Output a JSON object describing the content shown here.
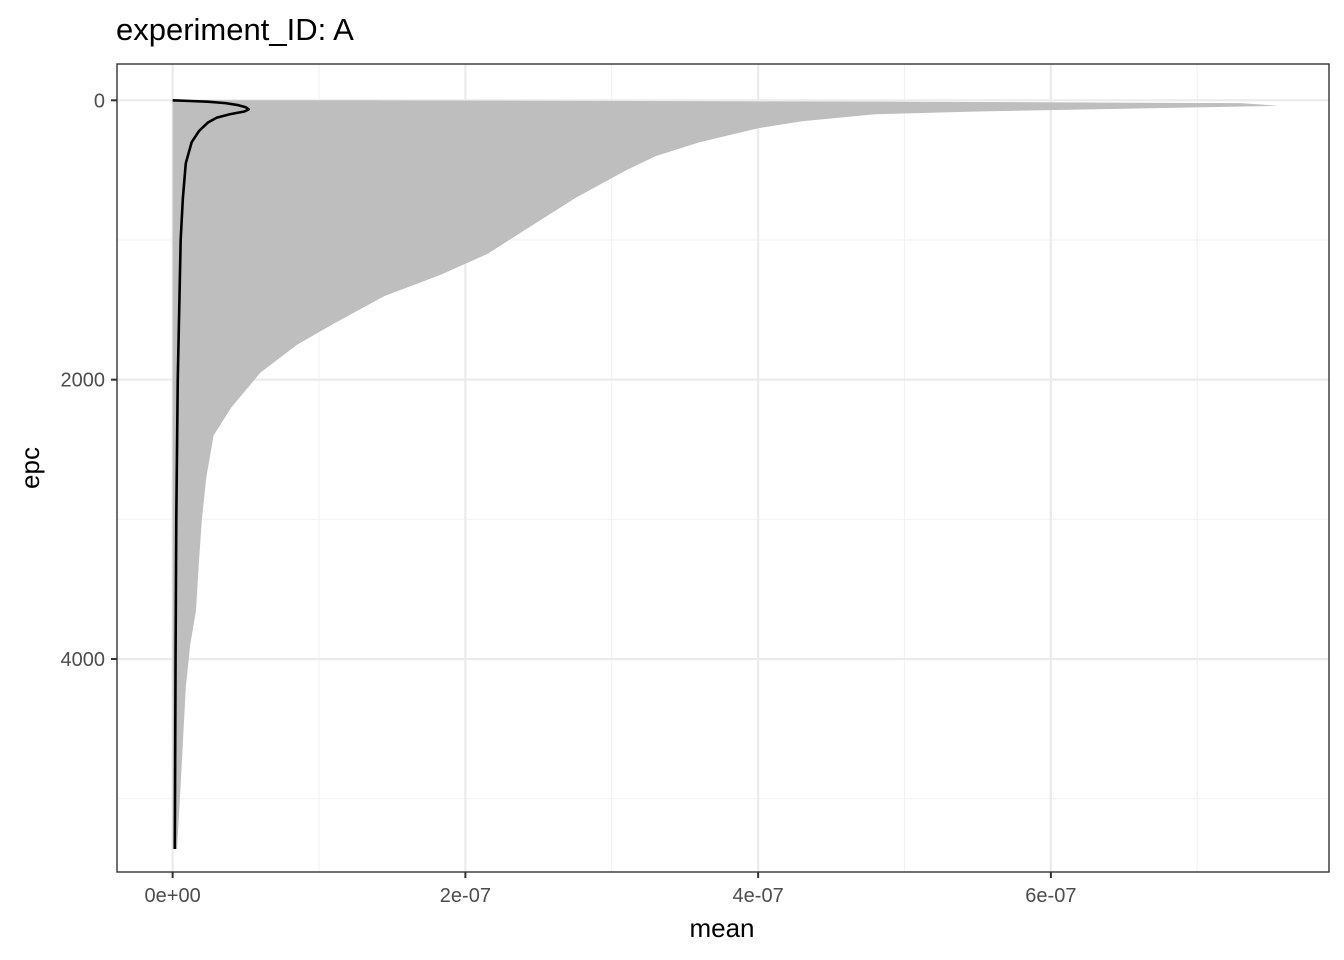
{
  "chart_data": {
    "type": "area",
    "title": "experiment_ID: A",
    "xlabel": "mean",
    "ylabel": "epc",
    "xlim": [
      -3.8e-08,
      7.9e-07
    ],
    "ylim": [
      5525,
      -260
    ],
    "y_reversed": true,
    "x_ticks": [
      {
        "value": 0,
        "label": "0e+00"
      },
      {
        "value": 2e-07,
        "label": "2e-07"
      },
      {
        "value": 4e-07,
        "label": "4e-07"
      },
      {
        "value": 6e-07,
        "label": "6e-07"
      }
    ],
    "x_minor_ticks": [
      1e-07,
      3e-07,
      5e-07,
      7e-07
    ],
    "y_ticks": [
      {
        "value": 0,
        "label": "0"
      },
      {
        "value": 2000,
        "label": "2000"
      },
      {
        "value": 4000,
        "label": "4000"
      }
    ],
    "y_minor_ticks": [
      1000,
      3000,
      5000
    ],
    "grid": true,
    "ribbon": {
      "color": "#bebebe",
      "upper": [
        {
          "epc": 0,
          "x": 1.4e-07
        },
        {
          "epc": 10,
          "x": 5e-07
        },
        {
          "epc": 20,
          "x": 7.3e-07
        },
        {
          "epc": 40,
          "x": 7.56e-07
        },
        {
          "epc": 60,
          "x": 6.5e-07
        },
        {
          "epc": 80,
          "x": 5.5e-07
        },
        {
          "epc": 100,
          "x": 4.8e-07
        },
        {
          "epc": 150,
          "x": 4.3e-07
        },
        {
          "epc": 200,
          "x": 4e-07
        },
        {
          "epc": 300,
          "x": 3.6e-07
        },
        {
          "epc": 400,
          "x": 3.3e-07
        },
        {
          "epc": 500,
          "x": 3.1e-07
        },
        {
          "epc": 700,
          "x": 2.75e-07
        },
        {
          "epc": 900,
          "x": 2.45e-07
        },
        {
          "epc": 1100,
          "x": 2.15e-07
        },
        {
          "epc": 1250,
          "x": 1.83e-07
        },
        {
          "epc": 1400,
          "x": 1.45e-07
        },
        {
          "epc": 1600,
          "x": 1.1e-07
        },
        {
          "epc": 1750,
          "x": 8.5e-08
        },
        {
          "epc": 1950,
          "x": 6e-08
        },
        {
          "epc": 2200,
          "x": 4e-08
        },
        {
          "epc": 2400,
          "x": 2.8e-08
        },
        {
          "epc": 2700,
          "x": 2.3e-08
        },
        {
          "epc": 3000,
          "x": 2e-08
        },
        {
          "epc": 3300,
          "x": 1.8e-08
        },
        {
          "epc": 3650,
          "x": 1.6e-08
        },
        {
          "epc": 3900,
          "x": 1.2e-08
        },
        {
          "epc": 4200,
          "x": 9e-09
        },
        {
          "epc": 4600,
          "x": 7e-09
        },
        {
          "epc": 5000,
          "x": 5e-09
        },
        {
          "epc": 5360,
          "x": 3e-09
        }
      ],
      "lower": [
        {
          "epc": 0,
          "x": 0
        },
        {
          "epc": 5360,
          "x": 0
        }
      ]
    },
    "series": [
      {
        "color": "#000000",
        "points": [
          {
            "epc": 0,
            "x": 0
          },
          {
            "epc": 5,
            "x": 1.2e-08
          },
          {
            "epc": 10,
            "x": 2.4e-08
          },
          {
            "epc": 20,
            "x": 3.6e-08
          },
          {
            "epc": 35,
            "x": 4.5e-08
          },
          {
            "epc": 50,
            "x": 5e-08
          },
          {
            "epc": 65,
            "x": 5.2e-08
          },
          {
            "epc": 80,
            "x": 4.9e-08
          },
          {
            "epc": 100,
            "x": 3.9e-08
          },
          {
            "epc": 125,
            "x": 3e-08
          },
          {
            "epc": 160,
            "x": 2.4e-08
          },
          {
            "epc": 220,
            "x": 1.8e-08
          },
          {
            "epc": 300,
            "x": 1.3e-08
          },
          {
            "epc": 450,
            "x": 9e-09
          },
          {
            "epc": 700,
            "x": 7e-09
          },
          {
            "epc": 1000,
            "x": 5.5e-09
          },
          {
            "epc": 1500,
            "x": 4.5e-09
          },
          {
            "epc": 2000,
            "x": 3.5e-09
          },
          {
            "epc": 3000,
            "x": 2.5e-09
          },
          {
            "epc": 4000,
            "x": 2e-09
          },
          {
            "epc": 5360,
            "x": 1.5e-09
          }
        ]
      }
    ]
  }
}
